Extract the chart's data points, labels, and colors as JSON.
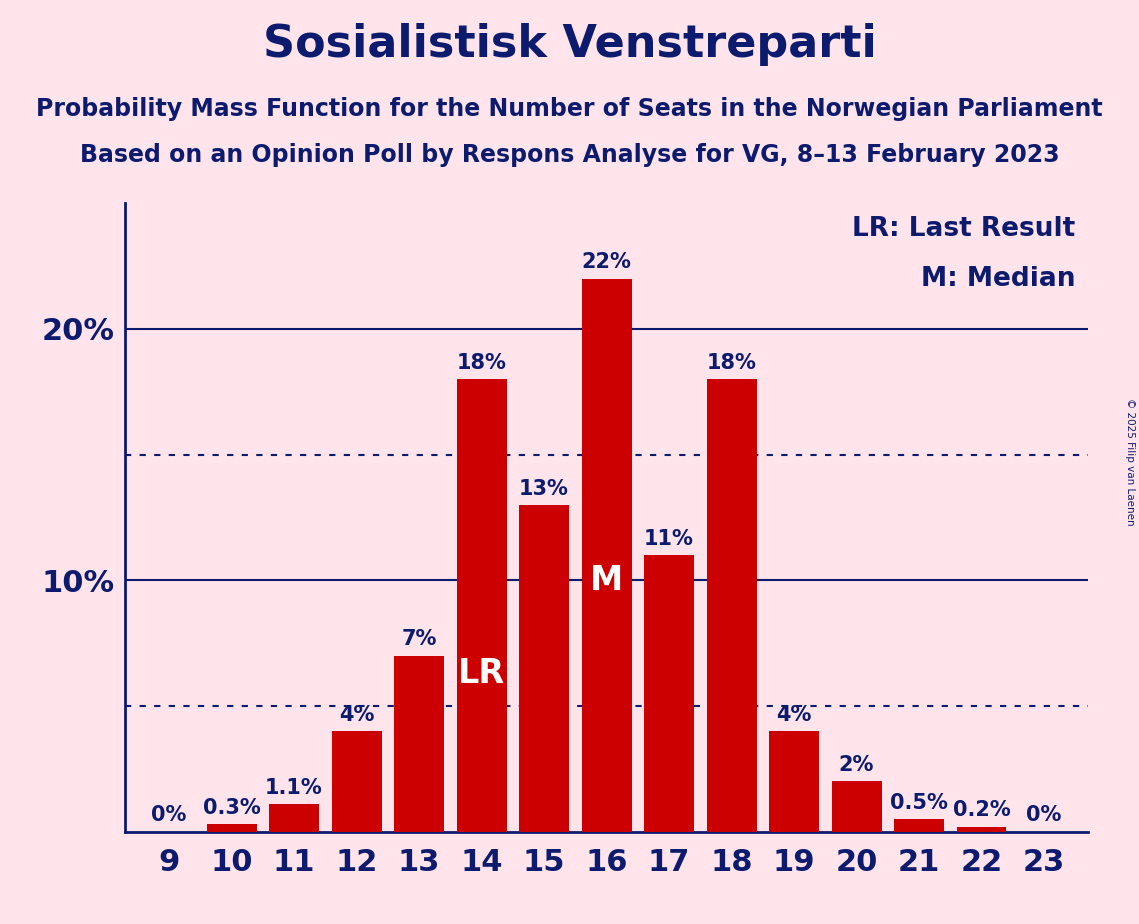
{
  "title": "Sosialistisk Venstreparti",
  "subtitle1": "Probability Mass Function for the Number of Seats in the Norwegian Parliament",
  "subtitle2": "Based on an Opinion Poll by Respons Analyse for VG, 8–13 February 2023",
  "copyright": "© 2025 Filip van Laenen",
  "seats": [
    9,
    10,
    11,
    12,
    13,
    14,
    15,
    16,
    17,
    18,
    19,
    20,
    21,
    22,
    23
  ],
  "probabilities": [
    0.0,
    0.3,
    1.1,
    4.0,
    7.0,
    18.0,
    13.0,
    22.0,
    11.0,
    18.0,
    4.0,
    2.0,
    0.5,
    0.2,
    0.0
  ],
  "bar_color": "#CC0000",
  "background_color": "#FFE4EC",
  "text_color": "#0D1B6E",
  "lr_seat": 14,
  "median_seat": 16,
  "lr_label": "LR",
  "median_label": "M",
  "lr_legend": "LR: Last Result",
  "median_legend": "M: Median",
  "ylim": [
    0,
    25
  ],
  "dotted_lines": [
    5,
    15
  ],
  "solid_lines": [
    10,
    20
  ],
  "bar_label_fontsize": 15,
  "title_fontsize": 32,
  "subtitle_fontsize": 17,
  "tick_fontsize": 22,
  "legend_fontsize": 19,
  "lr_m_fontsize": 24
}
